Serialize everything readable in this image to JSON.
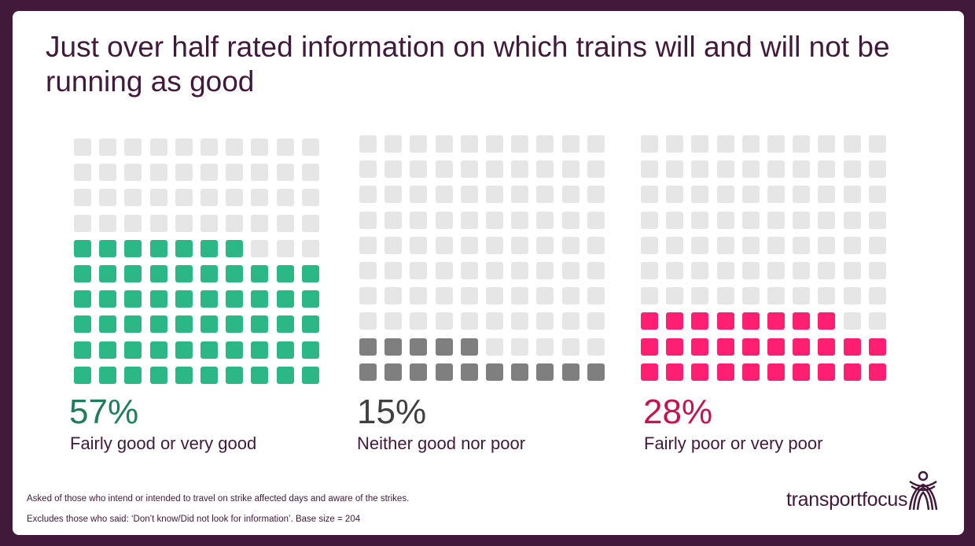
{
  "title": "Just over half rated information on which trains will and will not be running as good",
  "chart_data": [
    {
      "type": "waffle",
      "total": 100,
      "value": 57,
      "value_label": "57%",
      "category": "Fairly good or very good",
      "color": "#2bb886",
      "text_color": "#1e7d5a",
      "empty_color": "#e6e6e6"
    },
    {
      "type": "waffle",
      "total": 100,
      "value": 15,
      "value_label": "15%",
      "category": "Neither good nor poor",
      "color": "#7f7f7f",
      "text_color": "#404040",
      "empty_color": "#e6e6e6"
    },
    {
      "type": "waffle",
      "total": 100,
      "value": 28,
      "value_label": "28%",
      "category": "Fairly poor or very poor",
      "color": "#ff1f72",
      "text_color": "#c8124f",
      "empty_color": "#e6e6e6"
    }
  ],
  "footnotes": [
    "Asked of those who intend or intended to travel on strike affected days and aware of the strikes.",
    "Excludes those who said: ‘Don’t know/Did not look for information’. Base size = 204"
  ],
  "logo": {
    "text": "transportfocus"
  },
  "colors": {
    "background": "#41193a",
    "card": "#ffffff"
  }
}
